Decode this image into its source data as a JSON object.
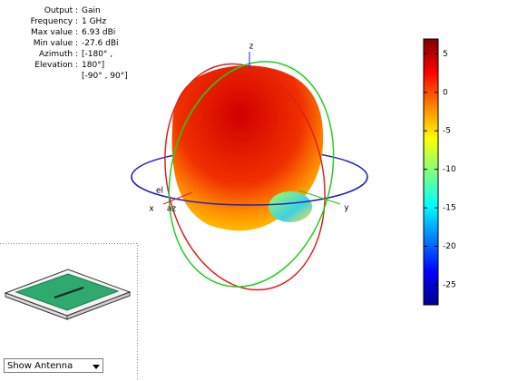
{
  "info": {
    "rows": [
      {
        "label": "Output :",
        "value": "Gain"
      },
      {
        "label": "Frequency :",
        "value": "1 GHz"
      },
      {
        "label": "Max value :",
        "value": "6.93 dBi"
      },
      {
        "label": "Min value :",
        "value": "-27.6 dBi"
      },
      {
        "label": "Azimuth :",
        "value": "[-180° ,"
      },
      {
        "label": "Elevation :",
        "value": "180°]"
      }
    ],
    "extra": "[-90° , 90°]"
  },
  "axes": {
    "z": "z",
    "x": "x",
    "y": "y",
    "el": "el",
    "az": "az"
  },
  "colorbar": {
    "lim": [
      -27.6,
      6.93
    ],
    "ticks": [
      5,
      0,
      -5,
      -10,
      -15,
      -20,
      -25
    ]
  },
  "dropdown": {
    "selected": "Show Antenna"
  }
}
